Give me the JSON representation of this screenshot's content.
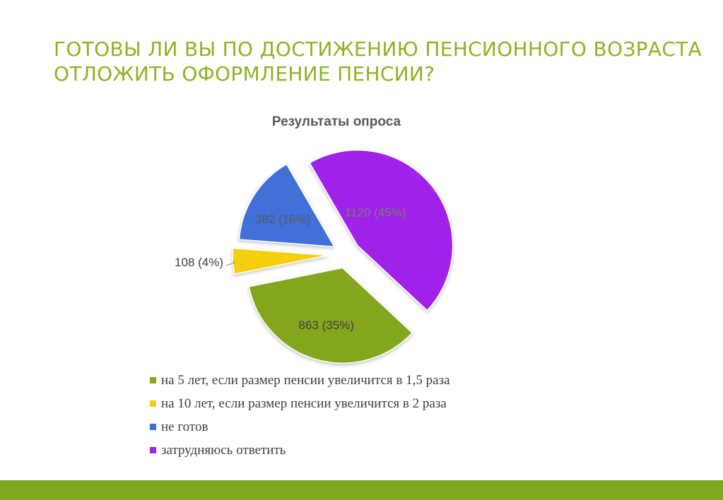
{
  "slide": {
    "title": "ГОТОВЫ ЛИ ВЫ ПО ДОСТИЖЕНИЮ ПЕНСИОННОГО ВОЗРАСТА ОТЛОЖИТЬ ОФОРМЛЕНИЕ ПЕНСИИ?",
    "bar_color": "#7fa81c"
  },
  "chart_data": {
    "type": "pie",
    "title": "Результаты опроса",
    "legend_position": "bottom",
    "exploded": true,
    "series": [
      {
        "name": "на 5 лет, если размер пенсии увеличится в 1,5 раза",
        "value": 863,
        "percent": 35,
        "label": "863 (35%)",
        "color": "#84a61c"
      },
      {
        "name": "на 10 лет, если размер пенсии увеличится в 2 раза",
        "value": 108,
        "percent": 4,
        "label": "108 (4%)",
        "color": "#f5cf0f"
      },
      {
        "name": "не готов",
        "value": 382,
        "percent": 16,
        "label": "382 (16%)",
        "color": "#3f6fd8"
      },
      {
        "name": "затрудняюсь ответить",
        "value": 1120,
        "percent": 45,
        "label": "1120 (45%)",
        "color": "#a020e8"
      }
    ]
  }
}
